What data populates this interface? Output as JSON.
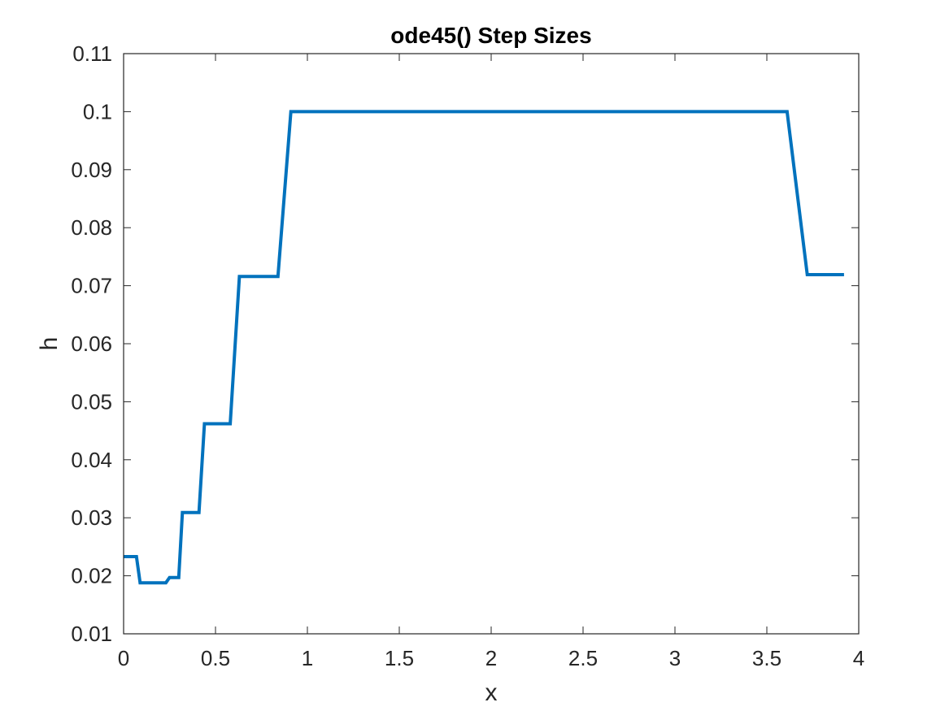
{
  "chart_data": {
    "type": "line",
    "title": "ode45() Step Sizes",
    "xlabel": "x",
    "ylabel": "h",
    "xlim": [
      0,
      4
    ],
    "ylim": [
      0.01,
      0.11
    ],
    "xticks": [
      0,
      0.5,
      1,
      1.5,
      2,
      2.5,
      3,
      3.5,
      4
    ],
    "xtick_labels": [
      "0",
      "0.5",
      "1",
      "1.5",
      "2",
      "2.5",
      "3",
      "3.5",
      "4"
    ],
    "yticks": [
      0.01,
      0.02,
      0.03,
      0.04,
      0.05,
      0.06,
      0.07,
      0.08,
      0.09,
      0.1,
      0.11
    ],
    "ytick_labels": [
      "0.01",
      "0.02",
      "0.03",
      "0.04",
      "0.05",
      "0.06",
      "0.07",
      "0.08",
      "0.09",
      "0.1",
      "0.11"
    ],
    "grid": false,
    "series": [
      {
        "color": "#0072BD",
        "x": [
          0,
          0.07,
          0.09,
          0.23,
          0.25,
          0.3,
          0.32,
          0.41,
          0.44,
          0.58,
          0.63,
          0.84,
          0.91,
          3.61,
          3.72,
          3.92
        ],
        "y": [
          0.0233,
          0.0233,
          0.0188,
          0.0188,
          0.0197,
          0.0197,
          0.0309,
          0.0309,
          0.0462,
          0.0462,
          0.0716,
          0.0716,
          0.1,
          0.1,
          0.0719,
          0.0719
        ]
      }
    ]
  }
}
